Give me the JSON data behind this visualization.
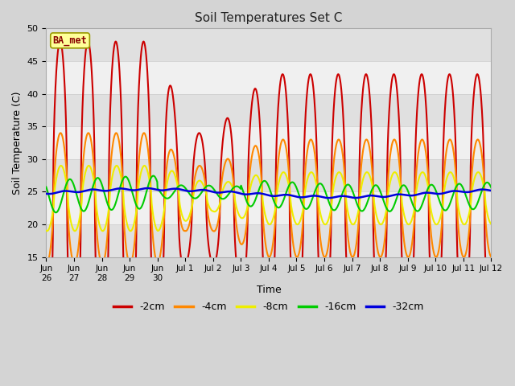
{
  "title": "Soil Temperatures Set C",
  "xlabel": "Time",
  "ylabel": "Soil Temperature (C)",
  "ylim": [
    15,
    50
  ],
  "yticks": [
    15,
    20,
    25,
    30,
    35,
    40,
    45,
    50
  ],
  "xlim": [
    0,
    16
  ],
  "colors": {
    "-2cm": "#cc0000",
    "-4cm": "#ff8800",
    "-8cm": "#eeee00",
    "-16cm": "#00cc00",
    "-32cm": "#0000dd"
  },
  "legend_labels": [
    "-2cm",
    "-4cm",
    "-8cm",
    "-16cm",
    "-32cm"
  ],
  "watermark_text": "BA_met",
  "fig_bg": "#d4d4d4",
  "plot_bg_light": "#f0f0f0",
  "plot_bg_dark": "#e0e0e0",
  "tick_labels": [
    "Jun\n26",
    "Jun\n27",
    "Jun\n28",
    "Jun\n29",
    "Jun\n30",
    "Jul 1",
    "Jul 2",
    "Jul 3",
    "Jul 4",
    "Jul 5",
    "Jul 6",
    "Jul 7",
    "Jul 8",
    "Jul 9",
    "Jul 10",
    "Jul 11",
    "Jul 12"
  ],
  "tick_positions": [
    0,
    1,
    2,
    3,
    4,
    5,
    6,
    7,
    8,
    9,
    10,
    11,
    12,
    13,
    14,
    15,
    16
  ]
}
